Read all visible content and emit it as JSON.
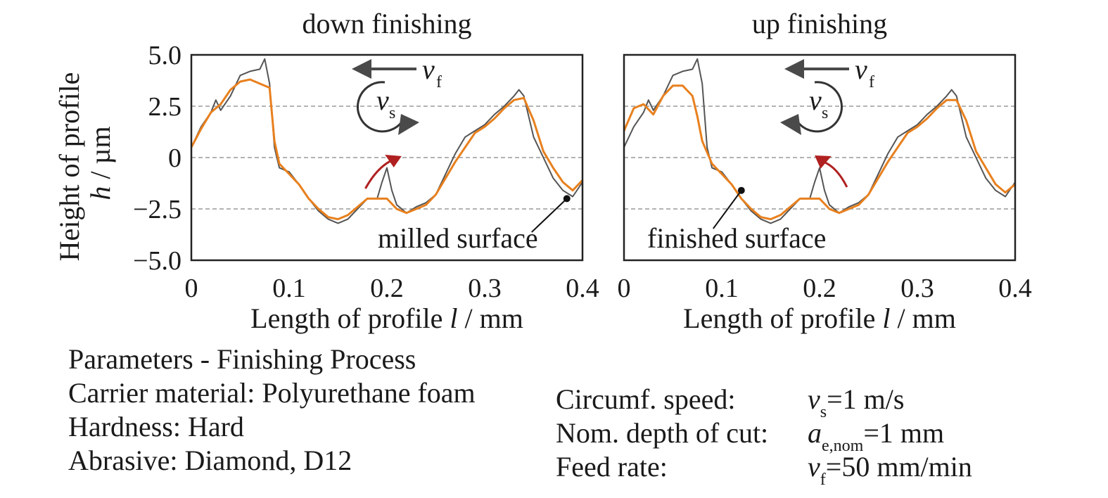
{
  "colors": {
    "milled": "#555555",
    "finished": "#e8801e",
    "grid": "#9a9a9a",
    "arrow_gray": "#4a4a4a",
    "arrow_red": "#b02020"
  },
  "axis": {
    "ylabel_line1": "Height of profile",
    "ylabel_var": "h",
    "ylabel_unit": " / µm",
    "xlabel_text": "Length of profile ",
    "xlabel_var": "l",
    "xlabel_unit": " / mm",
    "yticks": [
      "5.0",
      "2.5",
      "0",
      "−2.5",
      "−5.0"
    ],
    "xticks": [
      "0",
      "0.1",
      "0.2",
      "0.3",
      "0.4"
    ]
  },
  "chart_data": [
    {
      "type": "line",
      "title": "down finishing",
      "xlim": [
        0,
        0.4
      ],
      "ylim": [
        -5.0,
        5.0
      ],
      "grid": "dashed horizontal at 2.5, 0, −2.5",
      "series": [
        {
          "name": "milled surface",
          "x": [
            0,
            0.01,
            0.02,
            0.025,
            0.03,
            0.04,
            0.05,
            0.06,
            0.07,
            0.075,
            0.08,
            0.085,
            0.09,
            0.1,
            0.11,
            0.12,
            0.13,
            0.14,
            0.15,
            0.16,
            0.17,
            0.18,
            0.19,
            0.195,
            0.2,
            0.205,
            0.21,
            0.22,
            0.23,
            0.24,
            0.25,
            0.26,
            0.27,
            0.28,
            0.29,
            0.3,
            0.31,
            0.32,
            0.33,
            0.335,
            0.34,
            0.35,
            0.36,
            0.37,
            0.38,
            0.39,
            0.4
          ],
          "y": [
            0.5,
            1.5,
            2.2,
            2.8,
            2.3,
            3.0,
            4.0,
            4.2,
            4.3,
            4.8,
            3.6,
            0.5,
            -0.5,
            -0.7,
            -1.3,
            -2.0,
            -2.6,
            -3.0,
            -3.2,
            -3.0,
            -2.5,
            -2.0,
            -2.0,
            -1.2,
            -0.5,
            -1.6,
            -2.3,
            -2.7,
            -2.4,
            -2.2,
            -1.8,
            -0.8,
            0.2,
            1.0,
            1.3,
            1.6,
            2.1,
            2.5,
            3.0,
            3.3,
            3.0,
            1.0,
            0.0,
            -1.0,
            -1.6,
            -1.9,
            -1.2
          ]
        },
        {
          "name": "finished",
          "x": [
            0,
            0.01,
            0.02,
            0.03,
            0.04,
            0.05,
            0.06,
            0.07,
            0.08,
            0.085,
            0.09,
            0.1,
            0.11,
            0.12,
            0.13,
            0.14,
            0.15,
            0.16,
            0.17,
            0.18,
            0.19,
            0.2,
            0.21,
            0.22,
            0.23,
            0.24,
            0.25,
            0.26,
            0.27,
            0.28,
            0.29,
            0.3,
            0.31,
            0.32,
            0.33,
            0.34,
            0.35,
            0.36,
            0.37,
            0.38,
            0.39,
            0.4
          ],
          "y": [
            0.5,
            1.4,
            2.2,
            2.6,
            3.3,
            3.7,
            3.8,
            3.6,
            3.4,
            0.8,
            -0.3,
            -0.8,
            -1.3,
            -2.0,
            -2.5,
            -2.9,
            -3.0,
            -2.8,
            -2.4,
            -2.0,
            -2.0,
            -2.0,
            -2.5,
            -2.7,
            -2.5,
            -2.3,
            -1.8,
            -1.0,
            -0.2,
            0.5,
            1.2,
            1.5,
            1.9,
            2.4,
            2.8,
            2.9,
            1.8,
            0.3,
            -0.5,
            -1.2,
            -1.6,
            -1.1
          ]
        }
      ],
      "annotations": {
        "surface_label": "milled surface",
        "vf_label": "v",
        "vf_sub": "f",
        "vs_label": "v",
        "vs_sub": "s"
      }
    },
    {
      "type": "line",
      "title": "up finishing",
      "xlim": [
        0,
        0.4
      ],
      "ylim": [
        -5.0,
        5.0
      ],
      "grid": "dashed horizontal at 2.5, 0, −2.5",
      "series": [
        {
          "name": "milled surface",
          "x": [
            0,
            0.01,
            0.02,
            0.025,
            0.03,
            0.04,
            0.05,
            0.06,
            0.07,
            0.075,
            0.08,
            0.085,
            0.09,
            0.1,
            0.11,
            0.12,
            0.13,
            0.14,
            0.15,
            0.16,
            0.17,
            0.18,
            0.19,
            0.195,
            0.2,
            0.205,
            0.21,
            0.22,
            0.23,
            0.24,
            0.25,
            0.26,
            0.27,
            0.28,
            0.29,
            0.3,
            0.31,
            0.32,
            0.33,
            0.335,
            0.34,
            0.35,
            0.36,
            0.37,
            0.38,
            0.39,
            0.4
          ],
          "y": [
            0.5,
            1.5,
            2.2,
            2.8,
            2.3,
            3.0,
            4.0,
            4.2,
            4.3,
            4.8,
            3.6,
            0.5,
            -0.5,
            -0.7,
            -1.3,
            -2.0,
            -2.6,
            -3.0,
            -3.2,
            -3.0,
            -2.5,
            -2.0,
            -2.0,
            -1.2,
            -0.5,
            -1.6,
            -2.3,
            -2.7,
            -2.4,
            -2.2,
            -1.8,
            -0.8,
            0.2,
            1.0,
            1.3,
            1.6,
            2.1,
            2.5,
            3.0,
            3.3,
            3.0,
            1.0,
            0.0,
            -1.0,
            -1.6,
            -1.9,
            -1.2
          ]
        },
        {
          "name": "finished surface",
          "x": [
            0,
            0.01,
            0.02,
            0.03,
            0.04,
            0.05,
            0.06,
            0.07,
            0.075,
            0.08,
            0.09,
            0.1,
            0.11,
            0.12,
            0.13,
            0.14,
            0.15,
            0.16,
            0.17,
            0.18,
            0.19,
            0.2,
            0.21,
            0.22,
            0.23,
            0.24,
            0.25,
            0.26,
            0.27,
            0.28,
            0.29,
            0.3,
            0.31,
            0.32,
            0.33,
            0.34,
            0.35,
            0.36,
            0.37,
            0.38,
            0.39,
            0.4
          ],
          "y": [
            1.3,
            2.4,
            2.6,
            2.1,
            3.0,
            3.5,
            3.5,
            3.0,
            2.0,
            0.8,
            -0.3,
            -0.8,
            -1.3,
            -2.0,
            -2.5,
            -2.9,
            -3.0,
            -2.8,
            -2.4,
            -2.0,
            -2.0,
            -2.0,
            -2.5,
            -2.7,
            -2.5,
            -2.3,
            -1.8,
            -1.0,
            -0.2,
            0.5,
            1.2,
            1.5,
            1.9,
            2.4,
            2.8,
            2.8,
            1.8,
            0.3,
            -0.5,
            -1.3,
            -1.7,
            -1.3
          ]
        }
      ],
      "annotations": {
        "surface_label": "finished surface",
        "vf_label": "v",
        "vf_sub": "f",
        "vs_label": "v",
        "vs_sub": "s"
      }
    }
  ],
  "parameters": {
    "heading": "Parameters - Finishing Process",
    "carrier": "Carrier material: Polyurethane foam",
    "hardness": "Hardness: Hard",
    "abrasive": "Abrasive: Diamond, D12",
    "circ_label": "Circumf. speed:",
    "depth_label": "Nom. depth of cut:",
    "feed_label": "Feed rate:",
    "circ_var": "v",
    "circ_sub": "s",
    "circ_val": "=1 m/s",
    "depth_var": "a",
    "depth_sub": "e,nom",
    "depth_val": "=1 mm",
    "feed_var": "v",
    "feed_sub": "f",
    "feed_val": "=50 mm/min"
  }
}
